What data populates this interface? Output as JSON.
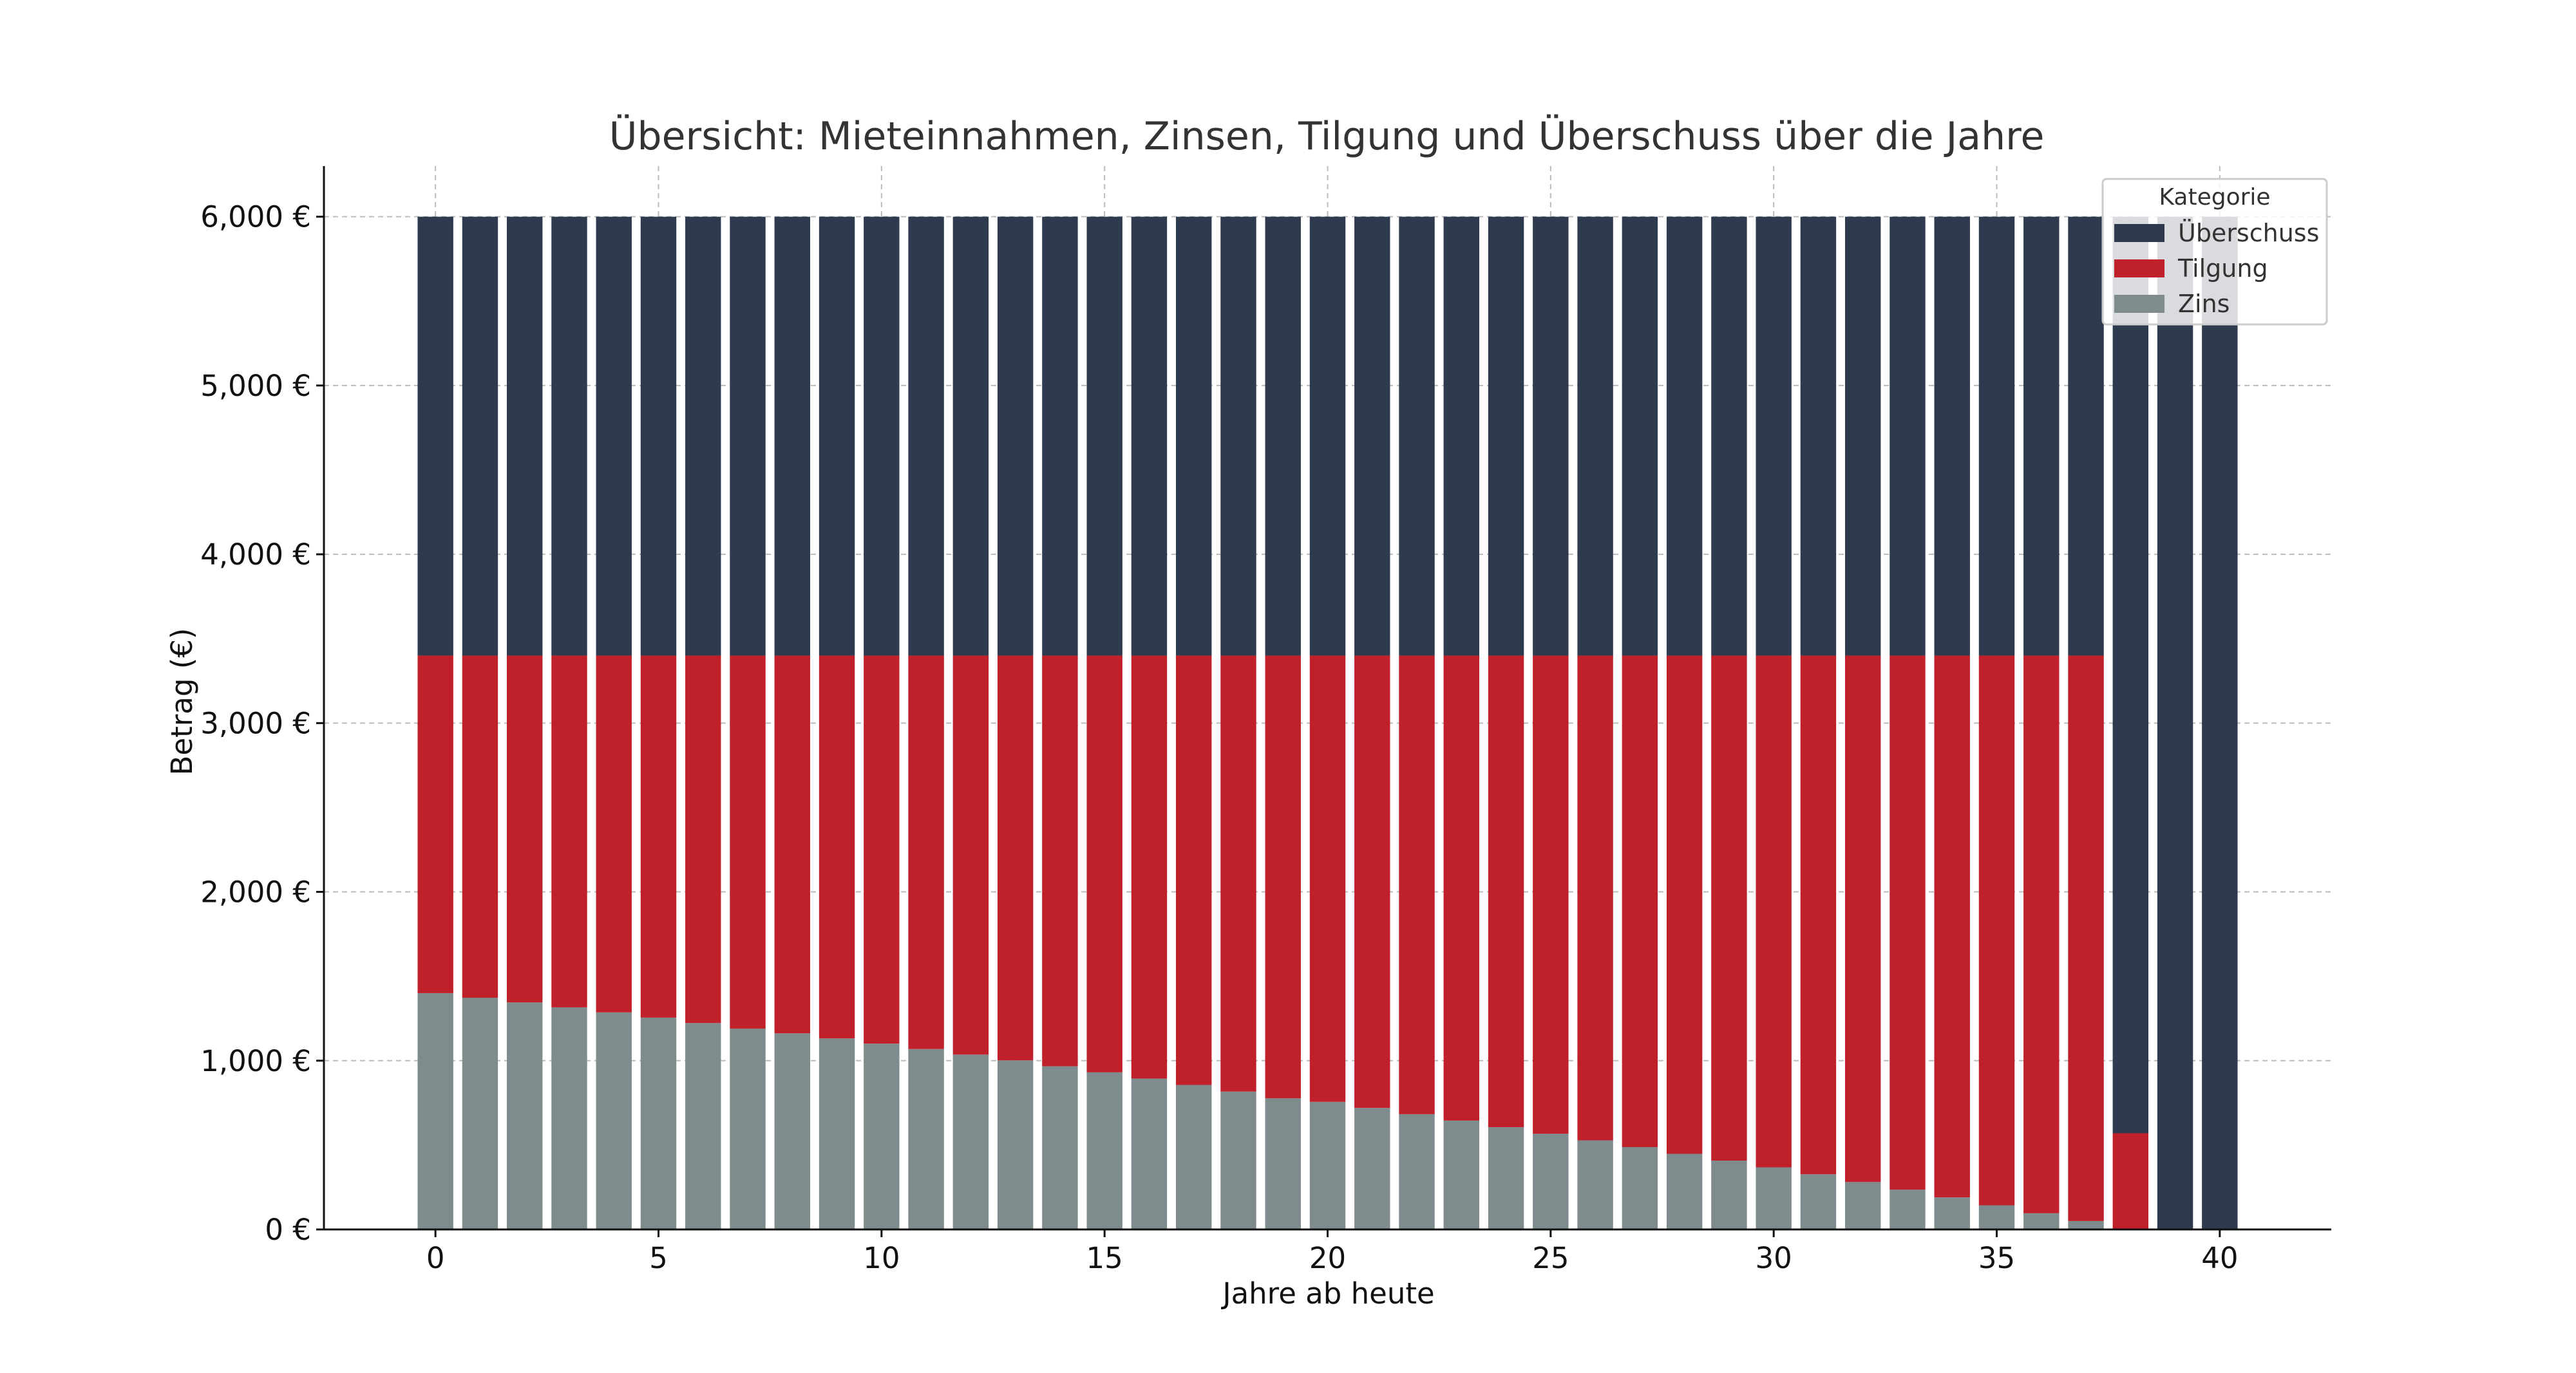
{
  "chart_data": {
    "type": "bar",
    "stacked": true,
    "title": "Übersicht: Mieteinnahmen, Zinsen, Tilgung und Überschuss über die Jahre",
    "xlabel": "Jahre ab heute",
    "ylabel": "Betrag (€)",
    "x": [
      0,
      1,
      2,
      3,
      4,
      5,
      6,
      7,
      8,
      9,
      10,
      11,
      12,
      13,
      14,
      15,
      16,
      17,
      18,
      19,
      20,
      21,
      22,
      23,
      24,
      25,
      26,
      27,
      28,
      29,
      30,
      31,
      32,
      33,
      34,
      35,
      36,
      37,
      38,
      39,
      40
    ],
    "xticks": [
      0,
      5,
      10,
      15,
      20,
      25,
      30,
      35,
      40
    ],
    "xlim": [
      -2.5,
      42.5
    ],
    "ylim": [
      0,
      6300
    ],
    "yticks": [
      0,
      1000,
      2000,
      3000,
      4000,
      5000,
      6000
    ],
    "ytick_labels": [
      "0 €",
      "1,000 €",
      "2,000 €",
      "3,000 €",
      "4,000 €",
      "5,000 €",
      "6,000 €"
    ],
    "grid": true,
    "legend_title": "Kategorie",
    "legend_position": "top-right",
    "series": [
      {
        "name": "Zins",
        "color": "#7f8c8d",
        "values": [
          1400,
          1373,
          1345,
          1316,
          1286,
          1255,
          1223,
          1190,
          1162,
          1132,
          1101,
          1069,
          1036,
          1002,
          967,
          931,
          894,
          856,
          817,
          777,
          756,
          720,
          683,
          645,
          606,
          567,
          528,
          488,
          448,
          408,
          368,
          327,
          281,
          236,
          190,
          143,
          96,
          50,
          0,
          0,
          0
        ]
      },
      {
        "name": "Tilgung",
        "color": "#c0202a",
        "values": [
          2000,
          2027,
          2055,
          2084,
          2114,
          2145,
          2177,
          2210,
          2238,
          2268,
          2299,
          2331,
          2364,
          2398,
          2433,
          2469,
          2506,
          2544,
          2583,
          2623,
          2644,
          2680,
          2717,
          2755,
          2794,
          2833,
          2872,
          2912,
          2952,
          2992,
          3032,
          3073,
          3119,
          3164,
          3210,
          3257,
          3304,
          3350,
          570,
          0,
          0
        ]
      },
      {
        "name": "Überschuss",
        "color": "#2e3b4e",
        "values": [
          2600,
          2600,
          2600,
          2600,
          2600,
          2600,
          2600,
          2600,
          2600,
          2600,
          2600,
          2600,
          2600,
          2600,
          2600,
          2600,
          2600,
          2600,
          2600,
          2600,
          2600,
          2600,
          2600,
          2600,
          2600,
          2600,
          2600,
          2600,
          2600,
          2600,
          2600,
          2600,
          2600,
          2600,
          2600,
          2600,
          2600,
          2600,
          5430,
          6000,
          6000
        ]
      }
    ]
  }
}
